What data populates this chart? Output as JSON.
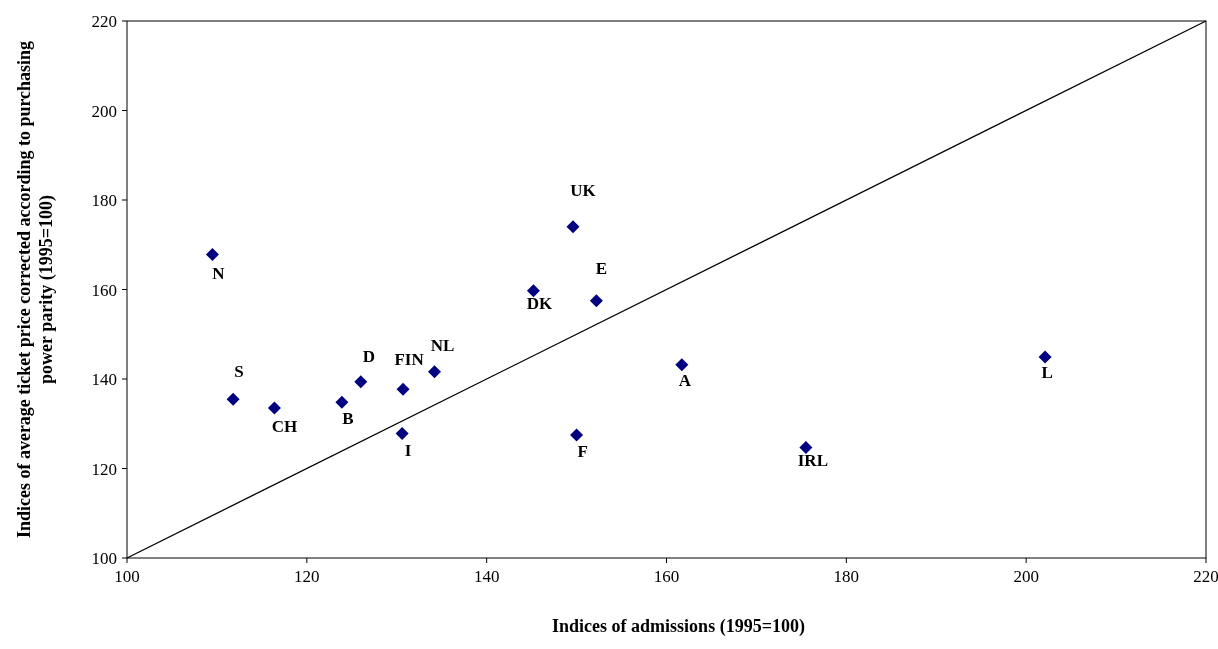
{
  "chart_data": {
    "type": "scatter",
    "xlabel": "Indices of admissions (1995=100)",
    "ylabel": "Indices of average ticket price corrected according to purchasing power parity (1995=100)",
    "xlim": [
      100,
      220
    ],
    "ylim": [
      100,
      220
    ],
    "xticks": [
      100,
      120,
      140,
      160,
      180,
      200,
      220
    ],
    "yticks": [
      100,
      120,
      140,
      160,
      180,
      200,
      220
    ],
    "marker": "diamond",
    "grid": false,
    "series": [
      {
        "color": "#000080",
        "x": [
          109.5,
          111.8,
          116.4,
          123.9,
          126.0,
          130.7,
          134.2,
          130.6,
          145.2,
          149.6,
          152.2,
          150.0,
          161.7,
          175.5,
          202.1
        ],
        "values": [
          167.8,
          135.5,
          133.5,
          134.8,
          139.4,
          137.7,
          141.6,
          127.8,
          159.7,
          174.0,
          157.5,
          127.5,
          143.2,
          124.7,
          144.9
        ]
      },
      {
        "type": "line",
        "marker": "none",
        "color": "#000000",
        "x": [
          100,
          220
        ],
        "values": [
          100,
          220
        ]
      }
    ],
    "annotations": [
      {
        "text": "N",
        "x": 109.5,
        "y": 167.8
      },
      {
        "text": "S",
        "x": 111.8,
        "y": 135.5
      },
      {
        "text": "CH",
        "x": 116.4,
        "y": 133.5
      },
      {
        "text": "B",
        "x": 123.9,
        "y": 134.8
      },
      {
        "text": "D",
        "x": 126.0,
        "y": 139.4
      },
      {
        "text": "FIN",
        "x": 130.7,
        "y": 137.7
      },
      {
        "text": "NL",
        "x": 134.2,
        "y": 141.6
      },
      {
        "text": "I",
        "x": 130.6,
        "y": 127.8
      },
      {
        "text": "DK",
        "x": 145.2,
        "y": 159.7
      },
      {
        "text": "UK",
        "x": 149.6,
        "y": 174.0
      },
      {
        "text": "E",
        "x": 152.2,
        "y": 157.5
      },
      {
        "text": "F",
        "x": 150.0,
        "y": 127.5
      },
      {
        "text": "A",
        "x": 161.7,
        "y": 143.2
      },
      {
        "text": "IRL",
        "x": 175.5,
        "y": 124.7
      },
      {
        "text": "L",
        "x": 202.1,
        "y": 144.9
      }
    ]
  }
}
